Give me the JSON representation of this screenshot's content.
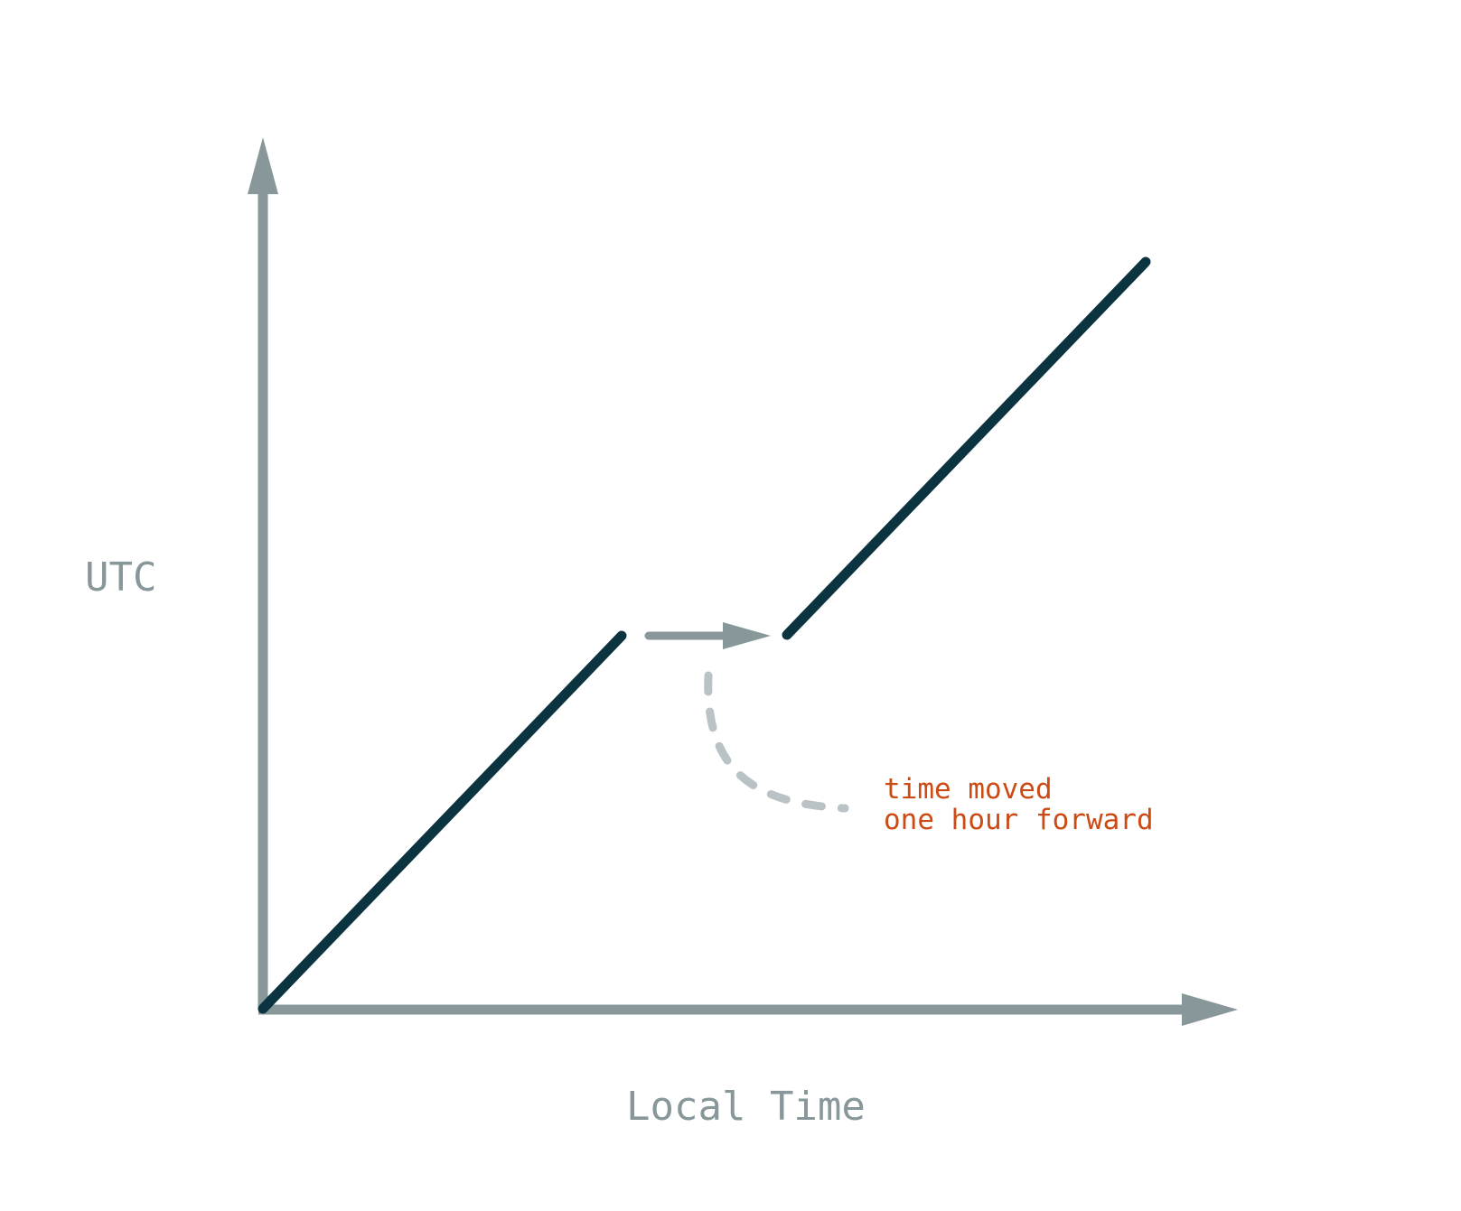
{
  "axes": {
    "x_label": "Local Time",
    "y_label": "UTC"
  },
  "annotation": {
    "line1": "time moved",
    "line2": "one hour forward"
  },
  "colors": {
    "axis": "#88979a",
    "line": "#0b3440",
    "annotation_text": "#cc4a14",
    "dashed_connector": "#b9c2c4"
  }
}
